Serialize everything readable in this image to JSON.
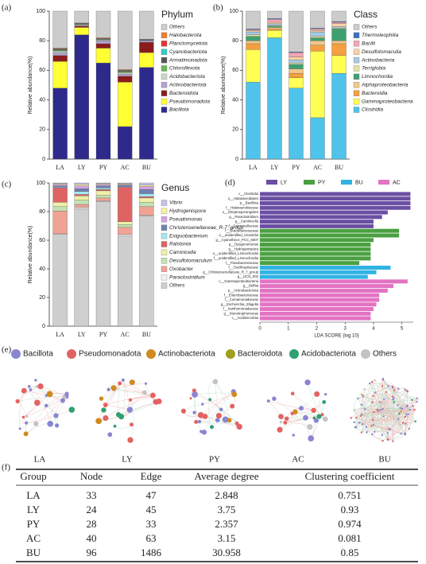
{
  "chart_data": [
    {
      "panel": "(a)",
      "type": "stacked_bar",
      "title": "Phylum",
      "ylabel": "Relative abundance(%)",
      "categories": [
        "LA",
        "LY",
        "PY",
        "AC",
        "BU"
      ],
      "ylim": [
        0,
        100
      ],
      "yticks": [
        0,
        20,
        40,
        60,
        80,
        100
      ],
      "series": [
        {
          "name": "Bacillota",
          "color": "#2e2a8c",
          "values": [
            48,
            84,
            65,
            22,
            62
          ]
        },
        {
          "name": "Pseudomonadota",
          "color": "#ffff33",
          "values": [
            18,
            5,
            10,
            30,
            10
          ]
        },
        {
          "name": "Bacteroidota",
          "color": "#8b1c1c",
          "values": [
            4,
            1,
            3,
            4,
            7
          ]
        },
        {
          "name": "Actinobacteriota",
          "color": "#b3a3d3",
          "values": [
            2,
            0.5,
            2,
            1.5,
            1
          ]
        },
        {
          "name": "Acidobacteriota",
          "color": "#c9dcc3",
          "values": [
            1,
            0.5,
            0.5,
            1,
            0.3
          ]
        },
        {
          "name": "Chloroflexota",
          "color": "#66bb55",
          "values": [
            0.5,
            0.3,
            0.3,
            0.5,
            0.2
          ]
        },
        {
          "name": "Armatimonadota",
          "color": "#555555",
          "values": [
            0.5,
            0.2,
            0.2,
            0.5,
            0.1
          ]
        },
        {
          "name": "Cyanobacteriota",
          "color": "#33cccc",
          "values": [
            0.3,
            0.2,
            0.3,
            0.3,
            0.1
          ]
        },
        {
          "name": "Planctomycetota",
          "color": "#e83333",
          "values": [
            0.3,
            0.1,
            0.2,
            0.2,
            0.1
          ]
        },
        {
          "name": "Halobacterota",
          "color": "#f08030",
          "values": [
            0.4,
            0.2,
            0.5,
            0.5,
            0.2
          ]
        },
        {
          "name": "Others",
          "color": "#cccccc",
          "values": [
            25,
            8,
            18,
            39.5,
            19
          ]
        }
      ]
    },
    {
      "panel": "(b)",
      "type": "stacked_bar",
      "title": "Class",
      "ylabel": "Relative abundance(%)",
      "categories": [
        "LA",
        "LY",
        "PY",
        "AC",
        "BU"
      ],
      "ylim": [
        0,
        100
      ],
      "yticks": [
        0,
        20,
        40,
        60,
        80,
        100
      ],
      "series": [
        {
          "name": "Clostridia",
          "color": "#4fc3ea",
          "values": [
            52,
            82,
            48,
            28,
            58
          ]
        },
        {
          "name": "Gammaproteobacteria",
          "color": "#ffff55",
          "values": [
            22,
            5,
            7,
            45,
            12
          ]
        },
        {
          "name": "Bacteroidia",
          "color": "#f4a040",
          "values": [
            4,
            1,
            3,
            4,
            8
          ]
        },
        {
          "name": "Alphaproteobacteria",
          "color": "#f3c68a",
          "values": [
            2,
            1,
            3,
            3,
            2
          ]
        },
        {
          "name": "Limnochordia",
          "color": "#3fa070",
          "values": [
            3,
            1,
            3,
            2,
            8
          ]
        },
        {
          "name": "Terriglobia",
          "color": "#e8e0a0",
          "values": [
            1,
            0.5,
            1,
            1,
            0.5
          ]
        },
        {
          "name": "Actinobacteria",
          "color": "#a6cbe3",
          "values": [
            2,
            1,
            2,
            3,
            1
          ]
        },
        {
          "name": "Desulfotomaculia",
          "color": "#f9d2a6",
          "values": [
            1,
            1,
            2,
            1,
            2
          ]
        },
        {
          "name": "Bacilli",
          "color": "#f3a5b3",
          "values": [
            0.5,
            2,
            3,
            1,
            1
          ]
        },
        {
          "name": "Thermoleophilia",
          "color": "#3f6fc0",
          "values": [
            0.5,
            0.5,
            0.5,
            0.5,
            0.5
          ]
        },
        {
          "name": "Others",
          "color": "#cccccc",
          "values": [
            12,
            5,
            27.5,
            11.5,
            7
          ]
        }
      ]
    },
    {
      "panel": "(c)",
      "type": "stacked_bar",
      "title": "Genus",
      "ylabel": "Relative abundance(%)",
      "categories": [
        "LA",
        "LY",
        "PY",
        "AC",
        "BU"
      ],
      "ylim": [
        0,
        100
      ],
      "yticks": [
        0,
        20,
        40,
        60,
        80,
        100
      ],
      "series": [
        {
          "name": "Others",
          "color": "#cfcfcf",
          "values": [
            64,
            82,
            87,
            63,
            77
          ]
        },
        {
          "name": "Paraclostridium",
          "color": "#f2f2f2",
          "values": [
            0.5,
            1,
            0.5,
            1,
            0.5
          ]
        },
        {
          "name": "Oxobacter",
          "color": "#f0a394",
          "values": [
            16,
            2,
            2,
            5,
            6
          ]
        },
        {
          "name": "Desulfotomaculum",
          "color": "#c3e2b3",
          "values": [
            3,
            3,
            2,
            2,
            3
          ]
        },
        {
          "name": "Caminicella",
          "color": "#eef0a6",
          "values": [
            3,
            3,
            3,
            2,
            3
          ]
        },
        {
          "name": "Ralstonia",
          "color": "#e06363",
          "values": [
            10,
            1,
            1,
            24,
            1
          ]
        },
        {
          "name": "Exiguobacterium",
          "color": "#a3e9f2",
          "values": [
            0.5,
            2,
            1,
            0.5,
            2
          ]
        },
        {
          "name": "Christensenellaceae_R-7_group",
          "color": "#7080b3",
          "values": [
            1,
            2,
            1.5,
            1,
            3
          ]
        },
        {
          "name": "Pseudomonas",
          "color": "#d3a3e3",
          "values": [
            1,
            2,
            1,
            0.5,
            2
          ]
        },
        {
          "name": "Hydrogenispora",
          "color": "#f8f0a3",
          "values": [
            0.5,
            1,
            0.5,
            0.5,
            1
          ]
        },
        {
          "name": "Vibrio",
          "color": "#c3c3eb",
          "values": [
            0.5,
            1,
            0.5,
            0.5,
            1.5
          ]
        }
      ]
    },
    {
      "panel": "(d)",
      "type": "lda_bar",
      "xlabel": "LDA SCORE (log 10)",
      "xlim": [
        0,
        5.4
      ],
      "xticks": [
        0,
        1,
        2,
        3,
        4,
        5
      ],
      "series": [
        {
          "name": "LY",
          "color": "#6a4fa3",
          "categories": [
            "c__Clostridia",
            "o__Halanaerobiales",
            "p__Bacillota",
            "f__Halanaerobiaceae",
            "o__Streptosporangiales",
            "g__Paraclostridium",
            "g__Caminicella",
            "f__Caminicellaceae"
          ],
          "values": [
            5.3,
            5.3,
            5.3,
            5.3,
            4.5,
            4.3,
            4.0,
            4.0
          ]
        },
        {
          "name": "PY",
          "color": "#4aa040",
          "categories": [
            "f__Gracilibacteraceae",
            "o__unidentified_Clostridia",
            "g__Cyanothece_PCC_8307",
            "g__Dysgonomonas",
            "g__Hydrogenispora",
            "o__unidentified_Limnochordia",
            "f__unidentified_Limnochordia",
            "f__Flavobacteriaceae"
          ],
          "values": [
            4.9,
            4.9,
            4.0,
            3.9,
            3.9,
            3.9,
            3.9,
            3.5
          ]
        },
        {
          "name": "BU",
          "color": "#30b3e3",
          "categories": [
            "f__Oscillospiraceae",
            "g__Christensenellaceae_R_7_group",
            "g__UCG_002"
          ],
          "values": [
            4.6,
            4.1,
            3.8
          ]
        },
        {
          "name": "AC",
          "color": "#e373c3",
          "categories": [
            "c__Gammaproteobacteria",
            "g__Delftia",
            "p__Actinobacteriota",
            "f__Enterobacteriaceae",
            "f__Comamonadaceae",
            "g__Escherichia_Shigella",
            "f__Xanthomonadaceae",
            "g__Stenotrophomonas",
            "c__Acidimicrobiia"
          ],
          "values": [
            5.2,
            4.7,
            4.5,
            4.2,
            4.2,
            4.1,
            4.0,
            3.9,
            3.9
          ]
        }
      ]
    }
  ],
  "networks": {
    "panel": "(e)",
    "legend": [
      {
        "name": "Bacillota",
        "color": "#8a85d3"
      },
      {
        "name": "Pseudomonadota",
        "color": "#e36363"
      },
      {
        "name": "Actinobacteriota",
        "color": "#d08a20"
      },
      {
        "name": "Bacteroidota",
        "color": "#a0a020"
      },
      {
        "name": "Acidobacteriota",
        "color": "#30a070"
      },
      {
        "name": "Others",
        "color": "#c3c3c3"
      }
    ],
    "labels": [
      "LA",
      "LY",
      "PY",
      "AC",
      "BU"
    ]
  },
  "table": {
    "panel": "(f)",
    "header": [
      "Group",
      "Node",
      "Edge",
      "Average degree",
      "Clustering coefficient"
    ],
    "rows": [
      [
        "LA",
        33,
        47,
        2.848,
        0.751
      ],
      [
        "LY",
        24,
        45,
        3.75,
        0.93
      ],
      [
        "PY",
        28,
        33,
        2.357,
        0.974
      ],
      [
        "AC",
        40,
        63,
        3.15,
        0.081
      ],
      [
        "BU",
        96,
        1486,
        30.958,
        0.85
      ]
    ]
  }
}
